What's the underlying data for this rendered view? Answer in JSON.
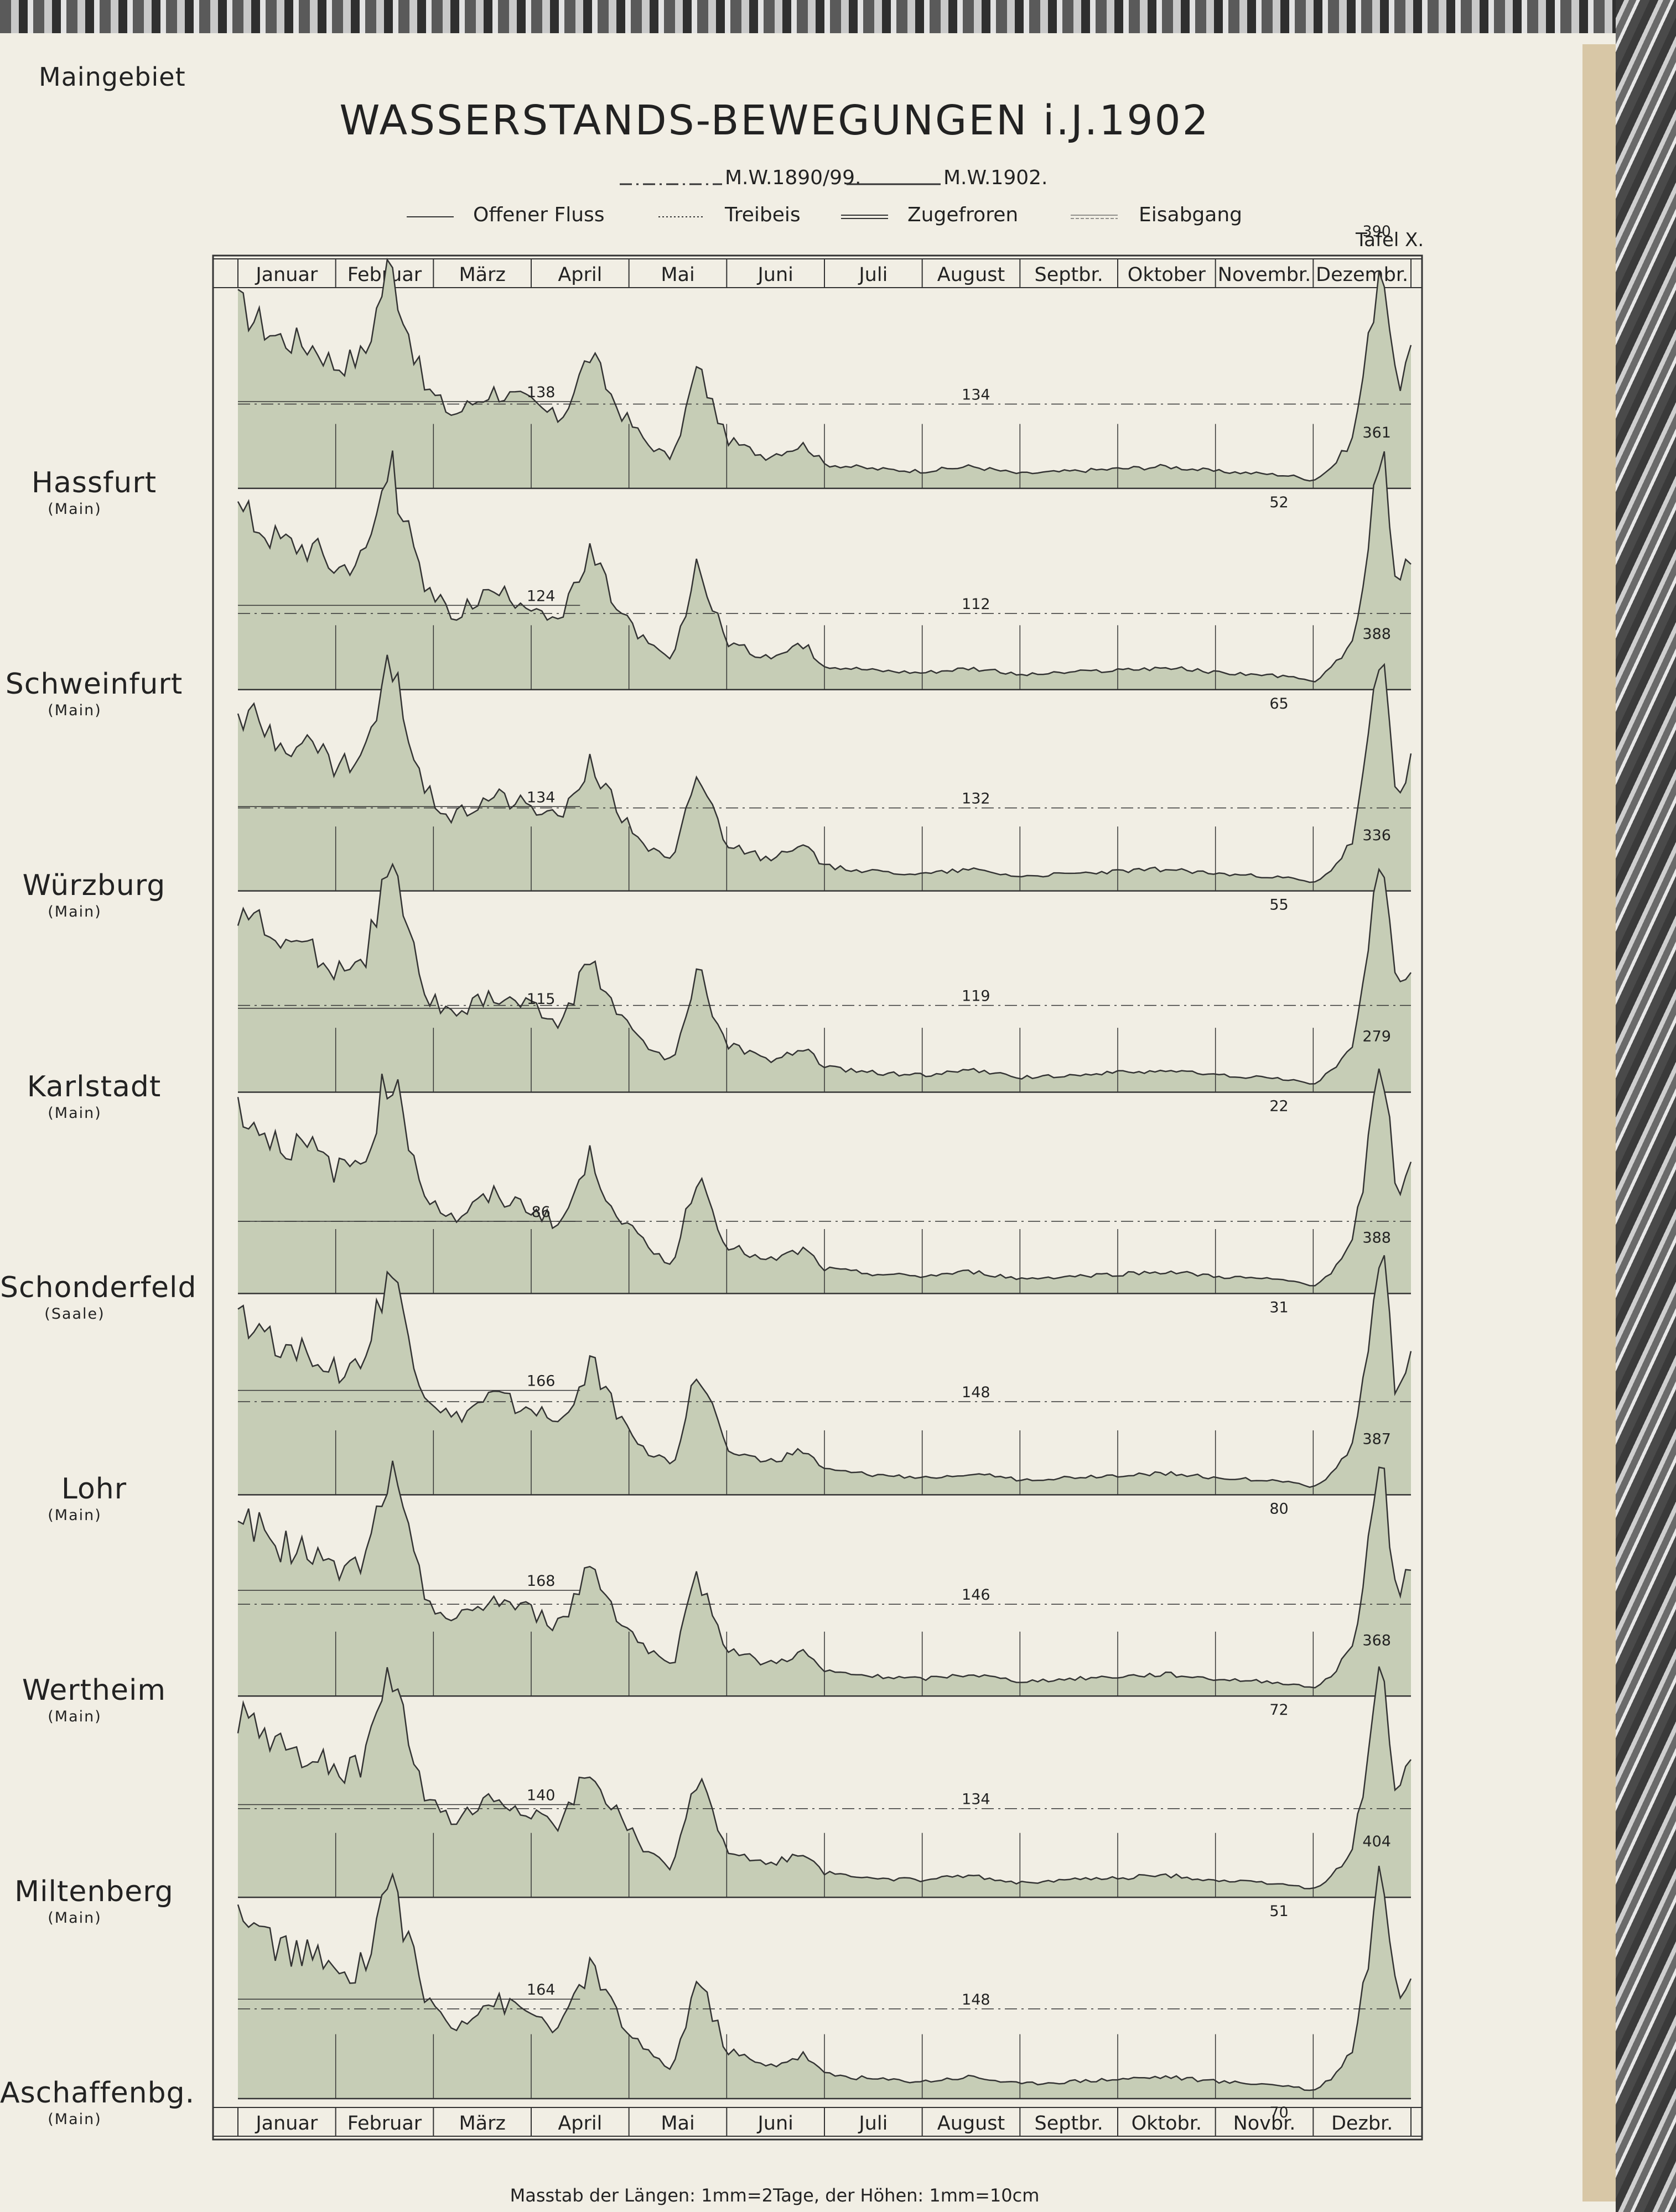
{
  "region_label": "Maingebiet",
  "title": "WASSERSTANDS-BEWEGUNGEN i.J.1902",
  "plate": "Tafel X.",
  "scale_note": "Masstab der Längen: 1mm=2Tage, der Höhen: 1mm=10cm",
  "legend": {
    "mean_lines": [
      {
        "label": "M.W.1890/99.",
        "style": "dash-dot"
      },
      {
        "label": "M.W.1902.",
        "style": "solid"
      }
    ],
    "ice_states": [
      {
        "label": "Offener Fluss",
        "style": "solid"
      },
      {
        "label": "Treibeis",
        "style": "dotted"
      },
      {
        "label": "Zugefroren",
        "style": "double"
      },
      {
        "label": "Eisabgang",
        "style": "double-thin"
      }
    ]
  },
  "colors": {
    "fill": "#c6cdb6",
    "line": "#333333",
    "paper": "#f1eee4"
  },
  "chart_data": {
    "type": "area",
    "x_unit": "month of 1902",
    "top_months": [
      "Januar",
      "Februar",
      "März",
      "April",
      "Mai",
      "Juni",
      "Juli",
      "August",
      "Septbr.",
      "Oktober",
      "Novembr.",
      "Dezembr."
    ],
    "bottom_months": [
      "Januar",
      "Februar",
      "März",
      "April",
      "Mai",
      "Juni",
      "Juli",
      "August",
      "Septbr.",
      "Oktobr.",
      "Novbr.",
      "Dezbr."
    ],
    "y_unit": "cm",
    "stations": [
      {
        "name": "Hassfurt",
        "river": "(Main)",
        "mean_label": "134",
        "segment_label": "138",
        "min_label": "52",
        "max_label": "390",
        "vmax": 400
      },
      {
        "name": "Schweinfurt",
        "river": "(Main)",
        "mean_label": "112",
        "segment_label": "124",
        "min_label": "65",
        "max_label": "361",
        "vmax": 370
      },
      {
        "name": "Würzburg",
        "river": "(Main)",
        "mean_label": "132",
        "segment_label": "134",
        "min_label": "55",
        "max_label": "388",
        "vmax": 400
      },
      {
        "name": "Karlstadt",
        "river": "(Main)",
        "mean_label": "119",
        "segment_label": "115",
        "min_label": "22",
        "max_label": "336",
        "vmax": 345
      },
      {
        "name": "Schonderfeld",
        "river": "(Saale)",
        "mean_label": "",
        "segment_label": "86",
        "min_label": "31",
        "max_label": "279",
        "vmax": 300
      },
      {
        "name": "Lohr",
        "river": "(Main)",
        "mean_label": "148",
        "segment_label": "166",
        "min_label": "80",
        "max_label": "388",
        "vmax": 400
      },
      {
        "name": "Wertheim",
        "river": "(Main)",
        "mean_label": "146",
        "segment_label": "168",
        "min_label": "72",
        "max_label": "387",
        "vmax": 400
      },
      {
        "name": "Miltenberg",
        "river": "(Main)",
        "mean_label": "134",
        "segment_label": "140",
        "min_label": "51",
        "max_label": "368",
        "vmax": 380
      },
      {
        "name": "Aschaffenbg.",
        "river": "(Main)",
        "mean_label": "148",
        "segment_label": "164",
        "min_label": "70",
        "max_label": "404",
        "vmax": 415
      }
    ],
    "profile_months": [
      0,
      0.4,
      0.8,
      1.0,
      1.3,
      1.55,
      1.9,
      2.2,
      2.6,
      3.0,
      3.3,
      3.6,
      3.9,
      4.2,
      4.45,
      4.7,
      5.0,
      5.4,
      5.8,
      6.0,
      6.5,
      7.0,
      7.5,
      8.0,
      8.5,
      9.0,
      9.5,
      10.0,
      10.5,
      10.8,
      11.0,
      11.2,
      11.4,
      11.55,
      11.7,
      11.85,
      12.0
    ],
    "profile_relative_level": [
      0.75,
      0.62,
      0.58,
      0.5,
      0.55,
      0.93,
      0.42,
      0.3,
      0.4,
      0.35,
      0.28,
      0.55,
      0.32,
      0.18,
      0.12,
      0.5,
      0.2,
      0.13,
      0.18,
      0.1,
      0.08,
      0.07,
      0.09,
      0.06,
      0.07,
      0.08,
      0.09,
      0.07,
      0.06,
      0.05,
      0.03,
      0.09,
      0.2,
      0.55,
      1.0,
      0.4,
      0.55
    ]
  }
}
